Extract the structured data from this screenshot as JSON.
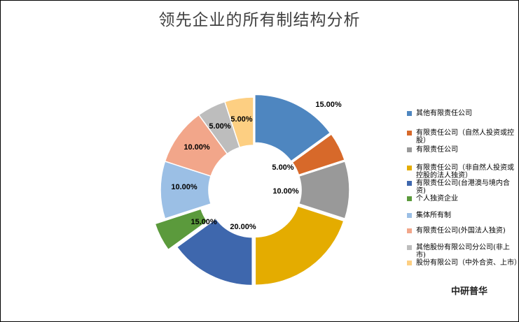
{
  "chart_data": {
    "type": "pie",
    "subtype": "donut",
    "title": "领先企业的所有制结构分析",
    "legend_position": "right",
    "categories": [
      "其他有限责任公司",
      "有限责任公司（自然人投资或控股）",
      "有限责任公司",
      "有限责任公司（非自然人投资或控股的法人独资）",
      "有限责任公司(台港澳与境内合资)",
      "个人独资企业",
      "集体所有制",
      "有限责任公司(外国法人独资)",
      "其他股份有限公司分公司(非上市)",
      "股份有限公司（中外合资、上市）"
    ],
    "values": [
      15,
      5,
      10,
      20,
      15,
      5,
      10,
      10,
      5,
      5
    ],
    "data_labels": [
      "15.00%",
      "5.00%",
      "10.00%",
      "20.00%",
      "15.00%",
      "",
      "10.00%",
      "10.00%",
      "5.00%",
      "5.00%"
    ],
    "colors": [
      "#4e86c0",
      "#d7692a",
      "#999999",
      "#e4ac00",
      "#3e67ad",
      "#5b9a3c",
      "#9bbfe5",
      "#f2a68a",
      "#bdbdbd",
      "#fdcf82"
    ]
  },
  "watermark": "中研普华"
}
